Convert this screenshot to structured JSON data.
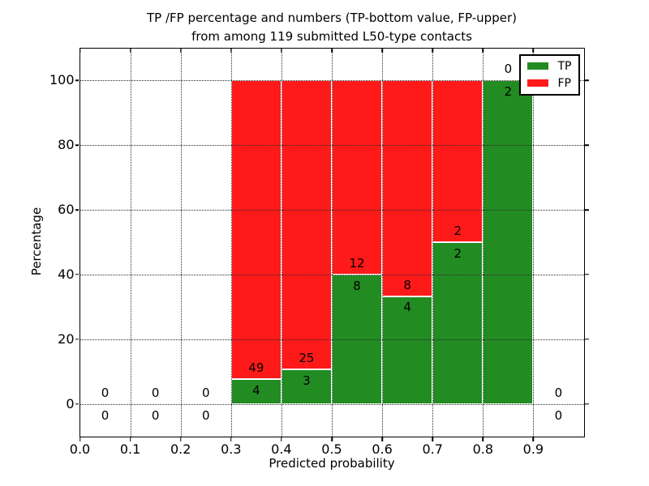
{
  "figure": {
    "title_line1": "TP /FP percentage and numbers (TP-bottom value, FP-upper)",
    "title_line2": "from among 119 submitted L50-type contacts"
  },
  "legend": {
    "items": [
      {
        "label": "TP",
        "color": "#228B22"
      },
      {
        "label": "FP",
        "color": "#FF1A1A"
      }
    ]
  },
  "chart_data": {
    "type": "bar",
    "stacked": true,
    "title": "TP /FP percentage and numbers (TP-bottom value, FP-upper) from among 119 submitted L50-type contacts",
    "xlabel": "Predicted probability",
    "ylabel": "Percentage",
    "xlim": [
      0.0,
      1.0
    ],
    "ylim": [
      -10,
      110
    ],
    "grid": true,
    "grid_style": "dotted",
    "legend_position": "upper right",
    "x_ticks": [
      0.0,
      0.1,
      0.2,
      0.3,
      0.4,
      0.5,
      0.6,
      0.7,
      0.8,
      0.9
    ],
    "y_ticks": [
      0,
      20,
      40,
      60,
      80,
      100
    ],
    "bin_edges": [
      0.0,
      0.1,
      0.2,
      0.3,
      0.4,
      0.5,
      0.6,
      0.7,
      0.8,
      0.9,
      1.0
    ],
    "series": [
      {
        "name": "TP",
        "color": "#228B22",
        "counts": [
          0,
          0,
          0,
          4,
          3,
          8,
          4,
          2,
          2,
          0
        ],
        "pct_of_bin": [
          0,
          0,
          0,
          7.5,
          10.7,
          40.0,
          33.3,
          50.0,
          100.0,
          0
        ]
      },
      {
        "name": "FP",
        "color": "#FF1A1A",
        "counts": [
          0,
          0,
          0,
          49,
          25,
          12,
          8,
          2,
          0,
          0
        ],
        "pct_of_bin": [
          0,
          0,
          0,
          92.5,
          89.3,
          60.0,
          66.7,
          50.0,
          0.0,
          0
        ]
      }
    ],
    "annotation_rule": "each bin annotated with FP count above and TP count below the TP/FP boundary",
    "label_offset_pct": 3.5,
    "total_contacts": 119
  }
}
